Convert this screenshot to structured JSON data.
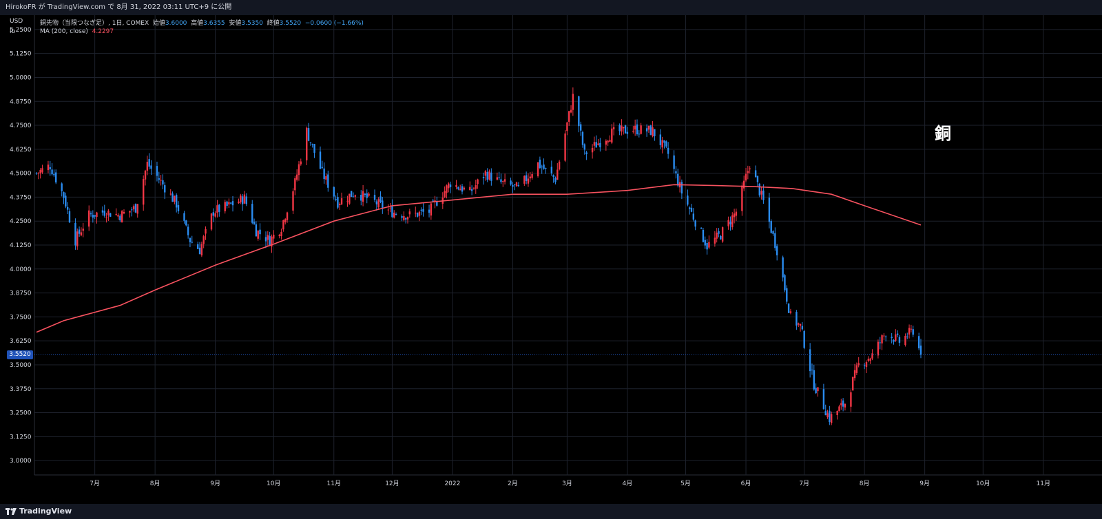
{
  "header": {
    "publish_text": "HirokoFR が TradingView.com で 8月 31, 2022 03:11 UTC+9 に公開"
  },
  "axis_units": {
    "currency": "USD",
    "unit": "lb"
  },
  "legend": {
    "symbol": "銅先物（当限つなぎ足）, 1日, COMEX",
    "open_label": "始値",
    "open_value": "3.6000",
    "high_label": "高値",
    "high_value": "3.6355",
    "low_label": "安値",
    "low_value": "3.5350",
    "close_label": "終値",
    "close_value": "3.5520",
    "change": "−0.0600 (−1.66%)",
    "ma_label": "MA (200, close)",
    "ma_value": "4.2297"
  },
  "annotation": "銅",
  "current_price_tag": "3.5520",
  "footer": {
    "brand": "TradingView"
  },
  "colors": {
    "up": "#f23645",
    "down": "#2a8cf0",
    "ma": "#f7525f",
    "price_tag": "#1f52b8",
    "grid": "#1e222d"
  },
  "chart_data": {
    "type": "candlestick",
    "title": "",
    "ylim": [
      2.925,
      5.325
    ],
    "y_ticks": [
      "3.0000",
      "3.1250",
      "3.2500",
      "3.3750",
      "3.5000",
      "3.6250",
      "3.7500",
      "3.8750",
      "4.0000",
      "4.1250",
      "4.2500",
      "4.3750",
      "4.5000",
      "4.6250",
      "4.7500",
      "4.8750",
      "5.0000",
      "5.1250",
      "5.2500"
    ],
    "x_ticks": [
      "7月",
      "8月",
      "9月",
      "10月",
      "11月",
      "12月",
      "2022",
      "2月",
      "3月",
      "4月",
      "5月",
      "6月",
      "7月",
      "8月",
      "9月",
      "10月",
      "11月"
    ],
    "price_anchors": [
      {
        "date": "2021-06-01",
        "close": 4.5
      },
      {
        "date": "2021-06-08",
        "close": 4.54
      },
      {
        "date": "2021-06-15",
        "close": 4.38
      },
      {
        "date": "2021-06-21",
        "close": 4.15
      },
      {
        "date": "2021-06-28",
        "close": 4.28
      },
      {
        "date": "2021-07-06",
        "close": 4.3
      },
      {
        "date": "2021-07-14",
        "close": 4.28
      },
      {
        "date": "2021-07-22",
        "close": 4.32
      },
      {
        "date": "2021-07-28",
        "close": 4.55
      },
      {
        "date": "2021-08-03",
        "close": 4.47
      },
      {
        "date": "2021-08-12",
        "close": 4.34
      },
      {
        "date": "2021-08-19",
        "close": 4.15
      },
      {
        "date": "2021-08-24",
        "close": 4.1
      },
      {
        "date": "2021-08-31",
        "close": 4.3
      },
      {
        "date": "2021-09-08",
        "close": 4.33
      },
      {
        "date": "2021-09-16",
        "close": 4.37
      },
      {
        "date": "2021-09-22",
        "close": 4.2
      },
      {
        "date": "2021-09-29",
        "close": 4.15
      },
      {
        "date": "2021-10-05",
        "close": 4.22
      },
      {
        "date": "2021-10-12",
        "close": 4.45
      },
      {
        "date": "2021-10-18",
        "close": 4.72
      },
      {
        "date": "2021-10-26",
        "close": 4.5
      },
      {
        "date": "2021-11-03",
        "close": 4.35
      },
      {
        "date": "2021-11-12",
        "close": 4.4
      },
      {
        "date": "2021-11-22",
        "close": 4.35
      },
      {
        "date": "2021-11-30",
        "close": 4.3
      },
      {
        "date": "2021-12-10",
        "close": 4.28
      },
      {
        "date": "2021-12-20",
        "close": 4.3
      },
      {
        "date": "2021-12-31",
        "close": 4.45
      },
      {
        "date": "2022-01-10",
        "close": 4.4
      },
      {
        "date": "2022-01-18",
        "close": 4.5
      },
      {
        "date": "2022-01-26",
        "close": 4.45
      },
      {
        "date": "2022-02-04",
        "close": 4.42
      },
      {
        "date": "2022-02-14",
        "close": 4.55
      },
      {
        "date": "2022-02-23",
        "close": 4.47
      },
      {
        "date": "2022-03-04",
        "close": 4.9
      },
      {
        "date": "2022-03-10",
        "close": 4.6
      },
      {
        "date": "2022-03-16",
        "close": 4.65
      },
      {
        "date": "2022-03-24",
        "close": 4.71
      },
      {
        "date": "2022-04-04",
        "close": 4.73
      },
      {
        "date": "2022-04-14",
        "close": 4.72
      },
      {
        "date": "2022-04-22",
        "close": 4.6
      },
      {
        "date": "2022-04-29",
        "close": 4.4
      },
      {
        "date": "2022-05-06",
        "close": 4.25
      },
      {
        "date": "2022-05-12",
        "close": 4.12
      },
      {
        "date": "2022-05-19",
        "close": 4.18
      },
      {
        "date": "2022-05-27",
        "close": 4.3
      },
      {
        "date": "2022-06-03",
        "close": 4.55
      },
      {
        "date": "2022-06-10",
        "close": 4.35
      },
      {
        "date": "2022-06-17",
        "close": 4.1
      },
      {
        "date": "2022-06-24",
        "close": 3.75
      },
      {
        "date": "2022-06-29",
        "close": 3.7
      },
      {
        "date": "2022-07-06",
        "close": 3.4
      },
      {
        "date": "2022-07-14",
        "close": 3.22
      },
      {
        "date": "2022-07-22",
        "close": 3.3
      },
      {
        "date": "2022-07-29",
        "close": 3.5
      },
      {
        "date": "2022-08-05",
        "close": 3.55
      },
      {
        "date": "2022-08-12",
        "close": 3.67
      },
      {
        "date": "2022-08-19",
        "close": 3.62
      },
      {
        "date": "2022-08-26",
        "close": 3.68
      },
      {
        "date": "2022-08-30",
        "close": 3.552
      }
    ],
    "ma_anchors": [
      {
        "date": "2021-06-01",
        "value": 3.67
      },
      {
        "date": "2021-06-15",
        "value": 3.73
      },
      {
        "date": "2021-07-14",
        "value": 3.81
      },
      {
        "date": "2021-08-01",
        "value": 3.89
      },
      {
        "date": "2021-09-01",
        "value": 4.02
      },
      {
        "date": "2021-10-01",
        "value": 4.13
      },
      {
        "date": "2021-11-01",
        "value": 4.25
      },
      {
        "date": "2021-12-01",
        "value": 4.33
      },
      {
        "date": "2022-01-01",
        "value": 4.36
      },
      {
        "date": "2022-02-01",
        "value": 4.39
      },
      {
        "date": "2022-03-01",
        "value": 4.39
      },
      {
        "date": "2022-04-01",
        "value": 4.41
      },
      {
        "date": "2022-04-25",
        "value": 4.44
      },
      {
        "date": "2022-05-15",
        "value": 4.436
      },
      {
        "date": "2022-06-05",
        "value": 4.43
      },
      {
        "date": "2022-06-25",
        "value": 4.42
      },
      {
        "date": "2022-07-15",
        "value": 4.39
      },
      {
        "date": "2022-08-01",
        "value": 4.33
      },
      {
        "date": "2022-08-30",
        "value": 4.2297
      }
    ]
  }
}
